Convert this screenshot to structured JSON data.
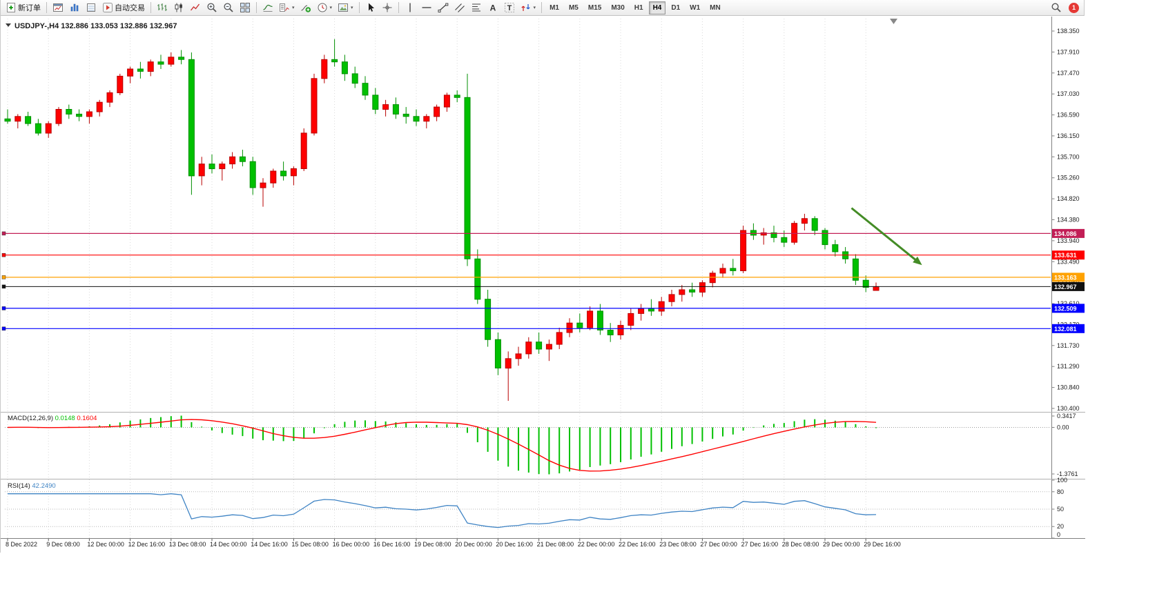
{
  "toolbar": {
    "groups": [
      {
        "buttons": [
          {
            "icon": "new-order",
            "label": "新订单"
          }
        ]
      },
      {
        "buttons": [
          {
            "icon": "chart-window"
          },
          {
            "icon": "market-watch"
          },
          {
            "icon": "data-window"
          },
          {
            "icon": "autotrading",
            "label": "自动交易"
          }
        ]
      },
      {
        "buttons": [
          {
            "icon": "bar-chart"
          },
          {
            "icon": "candlestick-chart"
          },
          {
            "icon": "line-chart"
          },
          {
            "icon": "zoom-in"
          },
          {
            "icon": "zoom-out"
          },
          {
            "icon": "tile-windows"
          }
        ]
      },
      {
        "buttons": [
          {
            "icon": "indicators"
          },
          {
            "icon": "indicators-list",
            "dropdown": true
          },
          {
            "icon": "add-indicator"
          },
          {
            "icon": "periods",
            "dropdown": true
          },
          {
            "icon": "templates",
            "dropdown": true
          }
        ]
      },
      {
        "buttons": [
          {
            "icon": "cursor"
          },
          {
            "icon": "crosshair"
          }
        ]
      },
      {
        "buttons": [
          {
            "icon": "vertical-line"
          },
          {
            "icon": "horizontal-line"
          },
          {
            "icon": "trend-line"
          },
          {
            "icon": "equidistant-channel"
          },
          {
            "icon": "fibonacci"
          },
          {
            "icon": "text"
          },
          {
            "icon": "text-label"
          },
          {
            "icon": "arrows",
            "dropdown": true
          }
        ]
      }
    ],
    "timeframes": [
      "M1",
      "M5",
      "M15",
      "M30",
      "H1",
      "H4",
      "D1",
      "W1",
      "MN"
    ],
    "active_timeframe": "H4",
    "notification_badge": "1"
  },
  "chart_data": {
    "type": "candlestick",
    "symbol": "USDJPY-",
    "timeframe": "H4",
    "title": "USDJPY-,H4 132.886 133.053 132.886 132.967",
    "current_bar": {
      "open": "132.886",
      "high": "133.053",
      "low": "132.886",
      "close": "132.967"
    },
    "price_axis_labels": [
      "138.350",
      "137.910",
      "137.470",
      "137.030",
      "136.590",
      "136.150",
      "135.700",
      "135.260",
      "134.820",
      "134.380",
      "133.940",
      "133.490",
      "133.050",
      "132.610",
      "132.170",
      "131.730",
      "131.290",
      "130.840",
      "130.400"
    ],
    "time_axis_labels": [
      "8 Dec 2022",
      "9 Dec 08:00",
      "12 Dec 00:00",
      "12 Dec 16:00",
      "13 Dec 08:00",
      "14 Dec 00:00",
      "14 Dec 16:00",
      "15 Dec 08:00",
      "16 Dec 00:00",
      "16 Dec 16:00",
      "19 Dec 08:00",
      "20 Dec 00:00",
      "20 Dec 16:00",
      "21 Dec 08:00",
      "22 Dec 00:00",
      "22 Dec 16:00",
      "23 Dec 08:00",
      "27 Dec 00:00",
      "27 Dec 16:00",
      "28 Dec 08:00",
      "29 Dec 00:00",
      "29 Dec 16:00"
    ],
    "candles_per_tick": 4,
    "candles": [
      [
        136.5,
        136.7,
        136.4,
        136.45
      ],
      [
        136.45,
        136.6,
        136.3,
        136.55
      ],
      [
        136.55,
        136.65,
        136.35,
        136.4
      ],
      [
        136.4,
        136.5,
        136.15,
        136.2
      ],
      [
        136.2,
        136.45,
        136.1,
        136.4
      ],
      [
        136.4,
        136.75,
        136.35,
        136.7
      ],
      [
        136.7,
        136.8,
        136.5,
        136.6
      ],
      [
        136.6,
        136.7,
        136.45,
        136.55
      ],
      [
        136.55,
        136.7,
        136.4,
        136.65
      ],
      [
        136.65,
        136.9,
        136.55,
        136.85
      ],
      [
        136.85,
        137.1,
        136.75,
        137.05
      ],
      [
        137.05,
        137.45,
        137.0,
        137.4
      ],
      [
        137.4,
        137.6,
        137.25,
        137.55
      ],
      [
        137.55,
        137.7,
        137.35,
        137.5
      ],
      [
        137.5,
        137.75,
        137.4,
        137.7
      ],
      [
        137.7,
        137.85,
        137.55,
        137.65
      ],
      [
        137.65,
        137.9,
        137.6,
        137.8
      ],
      [
        137.8,
        137.95,
        137.65,
        137.75
      ],
      [
        137.75,
        137.9,
        134.9,
        135.3
      ],
      [
        135.3,
        135.7,
        135.1,
        135.55
      ],
      [
        135.55,
        135.75,
        135.35,
        135.45
      ],
      [
        135.45,
        135.6,
        135.2,
        135.55
      ],
      [
        135.55,
        135.8,
        135.45,
        135.7
      ],
      [
        135.7,
        135.85,
        135.5,
        135.6
      ],
      [
        135.6,
        135.7,
        134.9,
        135.05
      ],
      [
        135.05,
        135.25,
        134.65,
        135.15
      ],
      [
        135.15,
        135.45,
        135.05,
        135.4
      ],
      [
        135.4,
        135.6,
        135.2,
        135.3
      ],
      [
        135.3,
        135.5,
        135.1,
        135.45
      ],
      [
        135.45,
        136.3,
        135.4,
        136.2
      ],
      [
        136.2,
        137.45,
        136.15,
        137.35
      ],
      [
        137.35,
        137.85,
        137.25,
        137.75
      ],
      [
        137.75,
        138.18,
        137.6,
        137.7
      ],
      [
        137.7,
        137.85,
        137.3,
        137.45
      ],
      [
        137.45,
        137.6,
        137.15,
        137.25
      ],
      [
        137.25,
        137.4,
        136.9,
        137.0
      ],
      [
        137.0,
        137.15,
        136.6,
        136.7
      ],
      [
        136.7,
        136.9,
        136.55,
        136.8
      ],
      [
        136.8,
        136.95,
        136.5,
        136.6
      ],
      [
        136.6,
        136.75,
        136.4,
        136.55
      ],
      [
        136.55,
        136.7,
        136.35,
        136.45
      ],
      [
        136.45,
        136.6,
        136.3,
        136.55
      ],
      [
        136.55,
        136.8,
        136.45,
        136.75
      ],
      [
        136.75,
        137.05,
        136.65,
        137.0
      ],
      [
        137.0,
        137.1,
        136.85,
        136.95
      ],
      [
        136.95,
        137.45,
        133.4,
        133.55
      ],
      [
        133.55,
        133.75,
        132.6,
        132.7
      ],
      [
        132.7,
        132.9,
        131.7,
        131.85
      ],
      [
        131.85,
        132.0,
        131.1,
        131.25
      ],
      [
        131.25,
        131.6,
        130.56,
        131.45
      ],
      [
        131.45,
        131.7,
        131.3,
        131.55
      ],
      [
        131.55,
        131.9,
        131.45,
        131.8
      ],
      [
        131.8,
        132.0,
        131.55,
        131.65
      ],
      [
        131.65,
        131.85,
        131.4,
        131.75
      ],
      [
        131.75,
        132.1,
        131.65,
        132.0
      ],
      [
        132.0,
        132.3,
        131.9,
        132.2
      ],
      [
        132.2,
        132.4,
        132.0,
        132.1
      ],
      [
        132.1,
        132.55,
        132.05,
        132.45
      ],
      [
        132.45,
        132.6,
        131.95,
        132.05
      ],
      [
        132.05,
        132.2,
        131.8,
        131.95
      ],
      [
        131.95,
        132.25,
        131.85,
        132.15
      ],
      [
        132.15,
        132.5,
        132.05,
        132.4
      ],
      [
        132.4,
        132.6,
        132.25,
        132.5
      ],
      [
        132.5,
        132.7,
        132.35,
        132.45
      ],
      [
        132.45,
        132.75,
        132.35,
        132.65
      ],
      [
        132.65,
        132.9,
        132.55,
        132.8
      ],
      [
        132.8,
        133.0,
        132.65,
        132.9
      ],
      [
        132.9,
        133.05,
        132.75,
        132.85
      ],
      [
        132.85,
        133.1,
        132.75,
        133.05
      ],
      [
        133.05,
        133.3,
        132.95,
        133.25
      ],
      [
        133.25,
        133.45,
        133.15,
        133.35
      ],
      [
        133.35,
        133.55,
        133.2,
        133.3
      ],
      [
        133.3,
        134.25,
        133.25,
        134.15
      ],
      [
        134.15,
        134.3,
        133.95,
        134.05
      ],
      [
        134.05,
        134.2,
        133.85,
        134.1
      ],
      [
        134.1,
        134.25,
        133.9,
        134.0
      ],
      [
        134.0,
        134.15,
        133.8,
        133.9
      ],
      [
        133.9,
        134.35,
        133.85,
        134.3
      ],
      [
        134.3,
        134.5,
        134.15,
        134.4
      ],
      [
        134.4,
        134.45,
        134.05,
        134.15
      ],
      [
        134.15,
        134.2,
        133.75,
        133.85
      ],
      [
        133.85,
        133.95,
        133.6,
        133.7
      ],
      [
        133.7,
        133.8,
        133.45,
        133.55
      ],
      [
        133.55,
        133.65,
        133.0,
        133.1
      ],
      [
        133.1,
        133.2,
        132.85,
        132.95
      ],
      [
        132.886,
        133.053,
        132.886,
        132.967
      ]
    ],
    "colors": {
      "background": "#ffffff",
      "grid": "#d9d9d9",
      "up": "#ff0000",
      "up_border": "#b80000",
      "down": "#00c000",
      "down_border": "#008f00"
    },
    "levels": [
      {
        "price": 134.086,
        "label": "134.086",
        "color": "#c21e56",
        "kind": "horizontal-line"
      },
      {
        "price": 133.631,
        "label": "133.631",
        "color": "#ff0000",
        "kind": "horizontal-line"
      },
      {
        "price": 133.163,
        "label": "133.163",
        "color": "#ffa200",
        "kind": "horizontal-line"
      },
      {
        "price": 132.967,
        "label": "132.967",
        "color": "#111111",
        "kind": "current-price"
      },
      {
        "price": 132.509,
        "label": "132.509",
        "color": "#0000ff",
        "kind": "horizontal-line"
      },
      {
        "price": 132.081,
        "label": "132.081",
        "color": "#0000ff",
        "kind": "horizontal-line"
      }
    ],
    "arrow": {
      "from": {
        "candle": 82.6,
        "price": 134.62
      },
      "to": {
        "candle": 89.5,
        "price": 133.42
      },
      "color": "#448c26"
    },
    "indicators": {
      "macd": {
        "name": "MACD(12,26,9)",
        "values": [
          "0.0148",
          "0.1604"
        ],
        "axis_labels": [
          "0.3417",
          "0.00",
          "-1.3761"
        ],
        "histogram_color": "#00c000",
        "signal_color": "#ff0000"
      },
      "rsi": {
        "name": "RSI(14)",
        "value": "42.2490",
        "axis_labels": [
          "100",
          "80",
          "50",
          "20",
          "0"
        ],
        "level_values": [
          80,
          50,
          20
        ],
        "line_color": "#3e83c4"
      }
    }
  }
}
